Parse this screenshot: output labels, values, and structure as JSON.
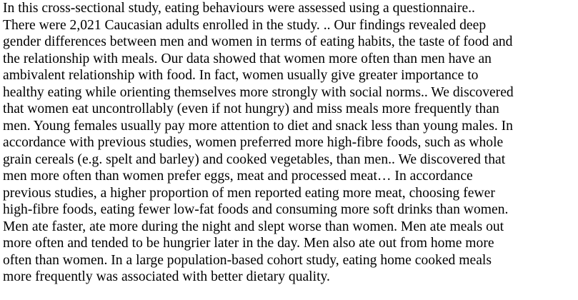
{
  "document": {
    "lines": [
      "   In this cross-sectional study, eating behaviours were assessed using a questionnaire..",
      "There were 2,021 Caucasian adults enrolled in the study. .. Our findings revealed deep",
      "gender differences between men and women in terms of eating habits, the taste of food and",
      "the relationship with meals. Our data showed that women more often than men have an",
      "ambivalent relationship with food. In fact, women usually give greater importance to",
      "healthy eating while orienting themselves more strongly with social norms.. We discovered",
      "that women eat uncontrollably (even if not hungry) and miss meals more frequently than",
      "men. Young females usually pay more attention to diet and snack less than young males. In",
      "accordance with previous studies, women preferred more high-fibre foods, such as whole",
      "grain cereals (e.g. spelt and barley) and cooked vegetables, than men.. We discovered that",
      "men more often than women prefer eggs, meat and processed meat… In accordance",
      "previous studies, a higher proportion of men reported eating more meat, choosing fewer",
      "high-fibre foods, eating fewer low-fat foods and consuming more soft drinks than women.",
      "Men ate faster, ate more during the night and slept worse than women. Men ate meals out",
      "more often and tended to be hungrier later in the day. Men also ate out from home more",
      "often than women. In a large population-based cohort study, eating home cooked meals",
      "more frequently was associated with better dietary quality."
    ]
  }
}
